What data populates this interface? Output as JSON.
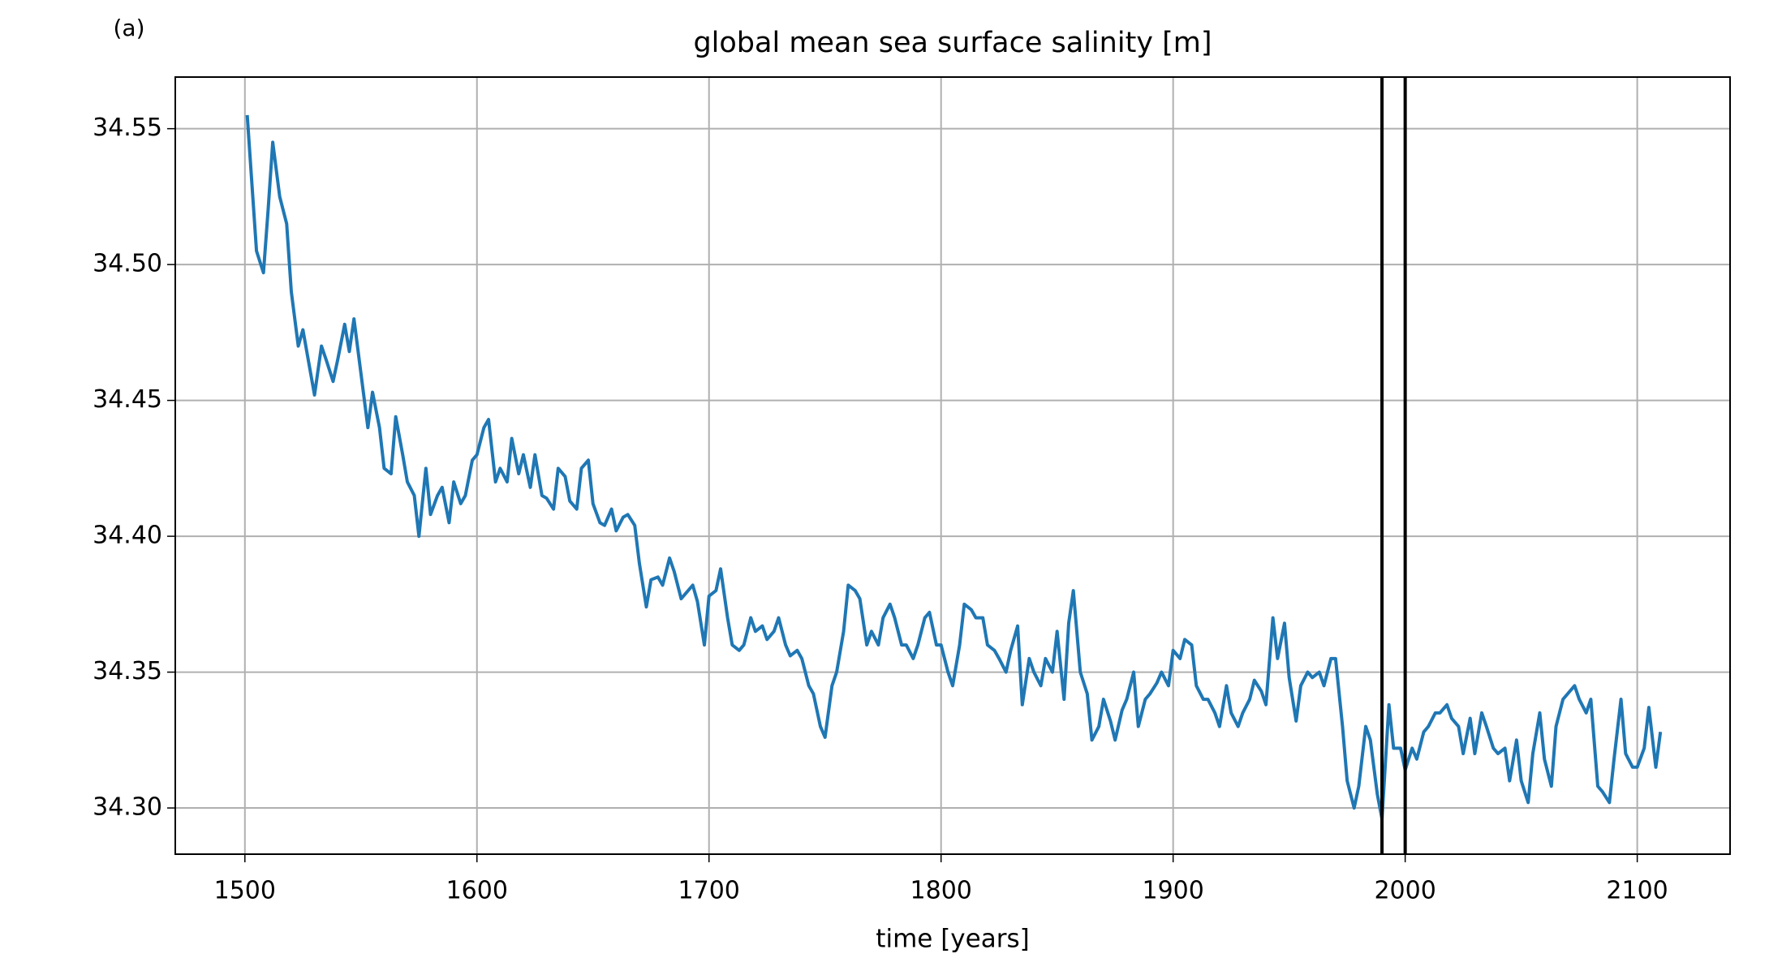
{
  "chart_data": {
    "type": "line",
    "title": "global mean sea surface salinity [m]",
    "panel_label": "(a)",
    "xlabel": "time [years]",
    "x": [
      1501,
      1505,
      1508,
      1510,
      1512,
      1515,
      1518,
      1520,
      1523,
      1525,
      1530,
      1533,
      1535,
      1538,
      1540,
      1543,
      1545,
      1547,
      1550,
      1553,
      1555,
      1558,
      1560,
      1563,
      1565,
      1568,
      1570,
      1573,
      1575,
      1578,
      1580,
      1583,
      1585,
      1588,
      1590,
      1593,
      1595,
      1598,
      1600,
      1603,
      1605,
      1608,
      1610,
      1613,
      1615,
      1618,
      1620,
      1623,
      1625,
      1628,
      1630,
      1633,
      1635,
      1638,
      1640,
      1643,
      1645,
      1648,
      1650,
      1653,
      1655,
      1658,
      1660,
      1663,
      1665,
      1668,
      1670,
      1673,
      1675,
      1678,
      1680,
      1683,
      1685,
      1688,
      1690,
      1693,
      1695,
      1698,
      1700,
      1703,
      1705,
      1708,
      1710,
      1713,
      1715,
      1718,
      1720,
      1723,
      1725,
      1728,
      1730,
      1733,
      1735,
      1738,
      1740,
      1743,
      1745,
      1748,
      1750,
      1753,
      1755,
      1758,
      1760,
      1763,
      1765,
      1768,
      1770,
      1773,
      1775,
      1778,
      1780,
      1783,
      1785,
      1788,
      1790,
      1793,
      1795,
      1798,
      1800,
      1803,
      1805,
      1808,
      1810,
      1813,
      1815,
      1818,
      1820,
      1823,
      1825,
      1828,
      1830,
      1833,
      1835,
      1838,
      1840,
      1843,
      1845,
      1848,
      1850,
      1853,
      1855,
      1857,
      1860,
      1863,
      1865,
      1868,
      1870,
      1873,
      1875,
      1878,
      1880,
      1883,
      1885,
      1888,
      1890,
      1893,
      1895,
      1898,
      1900,
      1903,
      1905,
      1908,
      1910,
      1913,
      1915,
      1918,
      1920,
      1923,
      1925,
      1928,
      1930,
      1933,
      1935,
      1938,
      1940,
      1943,
      1945,
      1948,
      1950,
      1953,
      1955,
      1958,
      1960,
      1963,
      1965,
      1968,
      1970,
      1973,
      1975,
      1978,
      1980,
      1983,
      1985,
      1988,
      1990,
      1993,
      1995,
      1998,
      2000,
      2003,
      2005,
      2008,
      2010,
      2013,
      2015,
      2018,
      2020,
      2023,
      2025,
      2028,
      2030,
      2033,
      2035,
      2038,
      2040,
      2043,
      2045,
      2048,
      2050,
      2053,
      2055,
      2058,
      2060,
      2063,
      2065,
      2068,
      2070,
      2073,
      2075,
      2078,
      2080,
      2083,
      2085,
      2088,
      2090,
      2093,
      2095,
      2098,
      2100,
      2103,
      2105,
      2108,
      2110
    ],
    "series": [
      {
        "color": "#1f77b4",
        "values": [
          34.555,
          34.505,
          34.497,
          34.52,
          34.545,
          34.525,
          34.515,
          34.49,
          34.47,
          34.476,
          34.452,
          34.47,
          34.465,
          34.457,
          34.465,
          34.478,
          34.468,
          34.48,
          34.46,
          34.44,
          34.453,
          34.44,
          34.425,
          34.423,
          34.444,
          34.43,
          34.42,
          34.415,
          34.4,
          34.425,
          34.408,
          34.415,
          34.418,
          34.405,
          34.42,
          34.412,
          34.415,
          34.428,
          34.43,
          34.44,
          34.443,
          34.42,
          34.425,
          34.42,
          34.436,
          34.423,
          34.43,
          34.418,
          34.43,
          34.415,
          34.414,
          34.41,
          34.425,
          34.422,
          34.413,
          34.41,
          34.425,
          34.428,
          34.412,
          34.405,
          34.404,
          34.41,
          34.402,
          34.407,
          34.408,
          34.404,
          34.39,
          34.374,
          34.384,
          34.385,
          34.382,
          34.392,
          34.387,
          34.377,
          34.379,
          34.382,
          34.376,
          34.36,
          34.378,
          34.38,
          34.388,
          34.37,
          34.36,
          34.358,
          34.36,
          34.37,
          34.365,
          34.367,
          34.362,
          34.365,
          34.37,
          34.36,
          34.356,
          34.358,
          34.355,
          34.345,
          34.342,
          34.33,
          34.326,
          34.345,
          34.35,
          34.365,
          34.382,
          34.38,
          34.377,
          34.36,
          34.365,
          34.36,
          34.37,
          34.375,
          34.37,
          34.36,
          34.36,
          34.355,
          34.36,
          34.37,
          34.372,
          34.36,
          34.36,
          34.35,
          34.345,
          34.36,
          34.375,
          34.373,
          34.37,
          34.37,
          34.36,
          34.358,
          34.355,
          34.35,
          34.358,
          34.367,
          34.338,
          34.355,
          34.35,
          34.345,
          34.355,
          34.35,
          34.365,
          34.34,
          34.368,
          34.38,
          34.35,
          34.342,
          34.325,
          34.33,
          34.34,
          34.332,
          34.325,
          34.336,
          34.34,
          34.35,
          34.33,
          34.34,
          34.342,
          34.346,
          34.35,
          34.345,
          34.358,
          34.355,
          34.362,
          34.36,
          34.345,
          34.34,
          34.34,
          34.335,
          34.33,
          34.345,
          34.335,
          34.33,
          34.335,
          34.34,
          34.347,
          34.343,
          34.338,
          34.37,
          34.355,
          34.368,
          34.348,
          34.332,
          34.345,
          34.35,
          34.348,
          34.35,
          34.345,
          34.355,
          34.355,
          34.33,
          34.31,
          34.3,
          34.308,
          34.33,
          34.325,
          34.305,
          34.296,
          34.338,
          34.322,
          34.322,
          34.314,
          34.322,
          34.318,
          34.328,
          34.33,
          34.335,
          34.335,
          34.338,
          34.333,
          34.33,
          34.32,
          34.333,
          34.32,
          34.335,
          34.33,
          34.322,
          34.32,
          34.322,
          34.31,
          34.325,
          34.31,
          34.302,
          34.32,
          34.335,
          34.318,
          34.308,
          34.33,
          34.34,
          34.342,
          34.345,
          34.34,
          34.335,
          34.34,
          34.308,
          34.306,
          34.302,
          34.318,
          34.34,
          34.32,
          34.315,
          34.315,
          34.322,
          34.337,
          34.315,
          34.328
        ]
      }
    ],
    "vlines": [
      1990,
      2000
    ],
    "vline_color": "#000000",
    "xlim": [
      1470,
      2140
    ],
    "ylim": [
      34.283,
      34.569
    ],
    "xticks": [
      1500,
      1600,
      1700,
      1800,
      1900,
      2000,
      2100
    ],
    "yticks": [
      {
        "value": 34.3,
        "label": "34.30"
      },
      34.35,
      {
        "value": 34.4,
        "label": "34.40"
      },
      34.45,
      {
        "value": 34.5,
        "label": "34.50"
      },
      34.55
    ],
    "grid": true
  }
}
